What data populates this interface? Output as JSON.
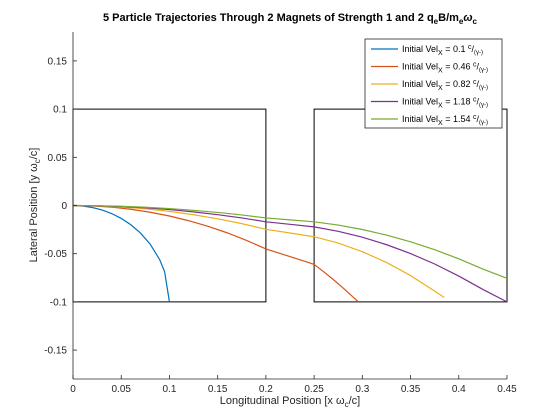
{
  "chart_data": {
    "type": "line",
    "title_main": "5 Particle Trajectories Through 2 Magnets of Strength 1 and 2 q",
    "title_sub1": "e",
    "title_mid": "B/m",
    "title_sub2": "e",
    "title_omega": "ω",
    "title_sub3": "c",
    "xlabel_main": "Longitudinal Position [x ω",
    "xlabel_sub": "c",
    "xlabel_end": "/c]",
    "ylabel_main": "Lateral Position [y ω",
    "ylabel_sub": "c",
    "ylabel_end": "/c]",
    "xlim": [
      0,
      0.45
    ],
    "ylim": [
      -0.18,
      0.18
    ],
    "xticks": [
      0,
      0.05,
      0.1,
      0.15,
      0.2,
      0.25,
      0.3,
      0.35,
      0.4,
      0.45
    ],
    "xtick_labels": [
      "0",
      "0.05",
      "0.1",
      "0.15",
      "0.2",
      "0.25",
      "0.3",
      "0.35",
      "0.4",
      "0.45"
    ],
    "yticks": [
      -0.15,
      -0.1,
      -0.05,
      0,
      0.05,
      0.1,
      0.15
    ],
    "ytick_labels": [
      "-0.15",
      "-0.1",
      "-0.05",
      "0",
      "0.05",
      "0.1",
      "0.15"
    ],
    "legend_position": "top-right",
    "magnets": [
      {
        "x": [
          0,
          0.2
        ],
        "y": [
          -0.1,
          0.1
        ]
      },
      {
        "x": [
          0.25,
          0.45
        ],
        "y": [
          -0.1,
          0.1
        ]
      }
    ],
    "series": [
      {
        "legend_prefix": "Initial Vel",
        "legend_sub": "X",
        "legend_value": " = 0.1 ",
        "legend_sup": "c",
        "legend_den": "/",
        "legend_den_sub": "(γ-)",
        "color": "#0072BD",
        "x": [
          0,
          0.01,
          0.02,
          0.03,
          0.04,
          0.05,
          0.06,
          0.07,
          0.08,
          0.09,
          0.095,
          0.1
        ],
        "y": [
          0,
          -0.0005,
          -0.0021,
          -0.0046,
          -0.0083,
          -0.0134,
          -0.02,
          -0.0286,
          -0.04,
          -0.0564,
          -0.0688,
          -0.1
        ]
      },
      {
        "legend_prefix": "Initial Vel",
        "legend_sub": "X",
        "legend_value": " = 0.46 ",
        "legend_sup": "c",
        "legend_den": "/",
        "legend_den_sub": "(γ-)",
        "color": "#D95319",
        "x": [
          0,
          0.02,
          0.04,
          0.06,
          0.08,
          0.1,
          0.12,
          0.14,
          0.16,
          0.18,
          0.2,
          0.22,
          0.24,
          0.25,
          0.26,
          0.27,
          0.28,
          0.29,
          0.296
        ],
        "y": [
          0,
          -0.0004,
          -0.0017,
          -0.0039,
          -0.007,
          -0.0109,
          -0.0158,
          -0.0216,
          -0.0284,
          -0.0362,
          -0.0451,
          -0.0514,
          -0.0578,
          -0.0611,
          -0.0688,
          -0.0769,
          -0.0855,
          -0.0946,
          -0.1
        ]
      },
      {
        "legend_prefix": "Initial Vel",
        "legend_sub": "X",
        "legend_value": " = 0.82 ",
        "legend_sup": "c",
        "legend_den": "/",
        "legend_den_sub": "(γ-)",
        "color": "#EDB120",
        "x": [
          0,
          0.025,
          0.05,
          0.075,
          0.1,
          0.125,
          0.15,
          0.175,
          0.2,
          0.225,
          0.25,
          0.275,
          0.3,
          0.325,
          0.35,
          0.375,
          0.385
        ],
        "y": [
          0,
          -0.0004,
          -0.0015,
          -0.0034,
          -0.0061,
          -0.0096,
          -0.0138,
          -0.0188,
          -0.0247,
          -0.0285,
          -0.0324,
          -0.039,
          -0.0479,
          -0.0591,
          -0.0727,
          -0.0888,
          -0.0955
        ]
      },
      {
        "legend_prefix": "Initial Vel",
        "legend_sub": "X",
        "legend_value": " = 1.18 ",
        "legend_sup": "c",
        "legend_den": "/",
        "legend_den_sub": "(γ-)",
        "color": "#7E2F8E",
        "x": [
          0,
          0.025,
          0.05,
          0.075,
          0.1,
          0.125,
          0.15,
          0.175,
          0.2,
          0.225,
          0.25,
          0.275,
          0.3,
          0.325,
          0.35,
          0.375,
          0.4,
          0.425,
          0.45
        ],
        "y": [
          0,
          -0.0003,
          -0.0011,
          -0.0024,
          -0.0042,
          -0.0066,
          -0.0095,
          -0.0129,
          -0.0169,
          -0.0195,
          -0.0222,
          -0.0268,
          -0.0329,
          -0.0406,
          -0.0499,
          -0.0607,
          -0.0732,
          -0.0871,
          -0.1
        ]
      },
      {
        "legend_prefix": "Initial Vel",
        "legend_sub": "X",
        "legend_value": " = 1.54 ",
        "legend_sup": "c",
        "legend_den": "/",
        "legend_den_sub": "(γ-)",
        "color": "#77AC30",
        "x": [
          0,
          0.025,
          0.05,
          0.075,
          0.1,
          0.125,
          0.15,
          0.175,
          0.2,
          0.225,
          0.25,
          0.275,
          0.3,
          0.325,
          0.35,
          0.375,
          0.4,
          0.425,
          0.45
        ],
        "y": [
          0,
          -0.0002,
          -0.0008,
          -0.0018,
          -0.0032,
          -0.005,
          -0.0072,
          -0.0098,
          -0.0129,
          -0.0149,
          -0.0169,
          -0.0203,
          -0.0249,
          -0.0307,
          -0.0377,
          -0.0459,
          -0.0553,
          -0.0659,
          -0.0756
        ]
      }
    ]
  }
}
